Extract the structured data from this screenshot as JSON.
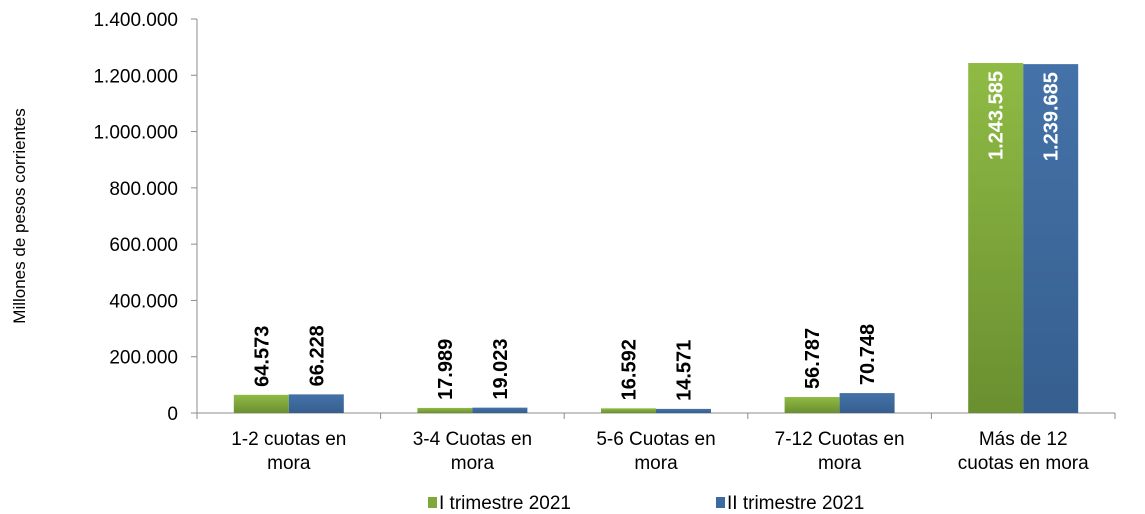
{
  "chart_data": {
    "type": "bar",
    "title": "",
    "xlabel": "",
    "ylabel": "Millones de pesos corrientes",
    "ylim": [
      0,
      1400000
    ],
    "yticks": [
      0,
      200000,
      400000,
      600000,
      800000,
      1000000,
      1200000,
      1400000
    ],
    "ytick_labels": [
      "0",
      "200.000",
      "400.000",
      "600.000",
      "800.000",
      "1.000.000",
      "1.200.000",
      "1.400.000"
    ],
    "categories": [
      [
        "1-2 cuotas en",
        "mora"
      ],
      [
        "3-4 Cuotas en",
        "mora"
      ],
      [
        "5-6 Cuotas en",
        "mora"
      ],
      [
        "7-12 Cuotas en",
        "mora"
      ],
      [
        "Más de 12",
        "cuotas en mora"
      ]
    ],
    "series": [
      {
        "name": "I trimestre 2021",
        "color": "#7fa83b",
        "values": [
          64573,
          17989,
          16592,
          56787,
          1243585
        ],
        "labels": [
          "64.573",
          "17.989",
          "16.592",
          "56.787",
          "1.243.585"
        ]
      },
      {
        "name": "II trimestre 2021",
        "color": "#3d6aa0",
        "values": [
          66228,
          19023,
          14571,
          70748,
          1239685
        ],
        "labels": [
          "66.228",
          "19.023",
          "14.571",
          "70.748",
          "1.239.685"
        ]
      }
    ],
    "grid": false,
    "legend_position": "bottom"
  }
}
